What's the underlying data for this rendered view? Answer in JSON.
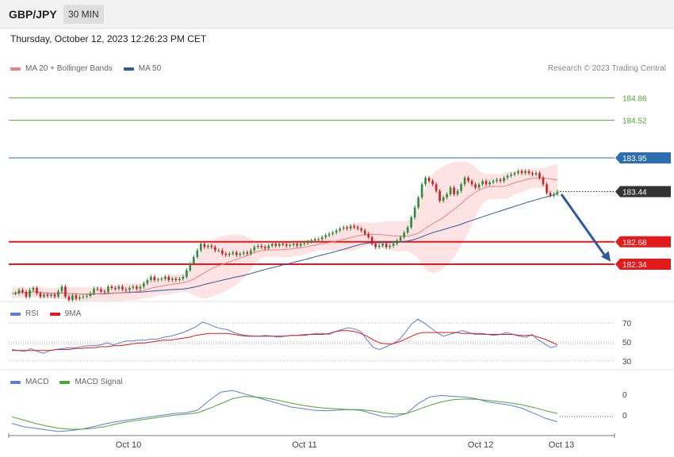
{
  "header": {
    "symbol": "GBP/JPY",
    "interval": "30 MIN",
    "datetime": "Thursday, October 12, 2023 12:26:23 PM CET",
    "copyright": "Research © 2023 Trading Central"
  },
  "legends": {
    "price": [
      {
        "label": "MA 20 + Bollinger Bands",
        "color": "#f08080"
      },
      {
        "label": "MA 50",
        "color": "#2c5a9e"
      }
    ],
    "rsi": [
      {
        "label": "RSI",
        "color": "#5b7fd6"
      },
      {
        "label": "9MA",
        "color": "#e31a1c"
      }
    ],
    "macd": [
      {
        "label": "MACD",
        "color": "#5b7fd6"
      },
      {
        "label": "MACD Signal",
        "color": "#4ea72e"
      }
    ]
  },
  "colors": {
    "up_candle": "#2e8b3e",
    "down_candle": "#cc1f1f",
    "band_fill": "#fde3e3",
    "resistance": "#4ea72e",
    "pivot": "#2c6fb0",
    "support": "#e31a1c",
    "arrow": "#2c5a9e"
  },
  "chart_data": [
    {
      "type": "candlestick",
      "title": "GBP/JPY 30 MIN",
      "x_ticks": [
        "Oct 10",
        "Oct 11",
        "Oct 12",
        "Oct 13"
      ],
      "ylim": [
        181.8,
        185.2
      ],
      "levels": [
        {
          "value": 184.86,
          "label": "184.86",
          "kind": "resistance"
        },
        {
          "value": 184.52,
          "label": "184.52",
          "kind": "resistance"
        },
        {
          "value": 183.95,
          "label": "183.95",
          "kind": "pivot"
        },
        {
          "value": 183.44,
          "label": "183.44",
          "kind": "last"
        },
        {
          "value": 182.68,
          "label": "182.68",
          "kind": "support"
        },
        {
          "value": 182.34,
          "label": "182.34",
          "kind": "support"
        }
      ],
      "close": [
        181.9,
        181.9,
        181.95,
        181.92,
        181.85,
        181.95,
        181.98,
        181.9,
        181.85,
        181.88,
        181.86,
        181.88,
        181.85,
        181.93,
        182.0,
        181.85,
        181.8,
        181.87,
        181.82,
        181.84,
        181.85,
        181.86,
        181.9,
        181.97,
        181.96,
        181.93,
        181.92,
        182.0,
        181.98,
        181.97,
        182.0,
        181.96,
        181.95,
        181.98,
        182.0,
        181.97,
        182.0,
        182.05,
        182.1,
        182.15,
        182.1,
        182.11,
        182.12,
        182.15,
        182.1,
        182.12,
        182.1,
        182.12,
        182.15,
        182.25,
        182.35,
        182.45,
        182.55,
        182.65,
        182.6,
        182.62,
        182.6,
        182.55,
        182.55,
        182.5,
        182.48,
        182.5,
        182.52,
        182.48,
        182.5,
        182.52,
        182.5,
        182.55,
        182.6,
        182.62,
        182.6,
        182.58,
        182.62,
        182.65,
        182.62,
        182.65,
        182.64,
        182.62,
        182.63,
        182.65,
        182.62,
        182.65,
        182.66,
        182.68,
        182.7,
        182.72,
        182.72,
        182.75,
        182.78,
        182.8,
        182.82,
        182.85,
        182.88,
        182.9,
        182.88,
        182.92,
        182.9,
        182.88,
        182.85,
        182.8,
        182.75,
        182.65,
        182.6,
        182.62,
        182.65,
        182.6,
        182.62,
        182.65,
        182.7,
        182.75,
        182.82,
        182.9,
        183.05,
        183.2,
        183.35,
        183.55,
        183.65,
        183.6,
        183.55,
        183.45,
        183.3,
        183.35,
        183.4,
        183.5,
        183.4,
        183.45,
        183.55,
        183.65,
        183.6,
        183.55,
        183.5,
        183.55,
        183.6,
        183.55,
        183.58,
        183.6,
        183.62,
        183.6,
        183.65,
        183.68,
        183.7,
        183.72,
        183.75,
        183.72,
        183.75,
        183.72,
        183.7,
        183.72,
        183.65,
        183.55,
        183.42,
        183.38,
        183.4,
        183.44
      ]
    },
    {
      "type": "line",
      "title": "RSI",
      "ylim": [
        24,
        76
      ],
      "y_ticks": [
        70,
        50,
        30
      ],
      "series": [
        {
          "name": "RSI",
          "values": [
            42,
            41,
            40,
            43,
            40,
            38,
            41,
            42,
            43,
            44,
            44,
            45,
            46,
            46,
            47,
            49,
            47,
            49,
            51,
            51,
            52,
            52,
            53,
            53,
            55,
            56,
            58,
            60,
            63,
            66,
            71,
            69,
            66,
            64,
            63,
            60,
            58,
            57,
            56,
            56,
            57,
            56,
            55,
            56,
            57,
            57,
            58,
            58,
            59,
            59,
            58,
            61,
            63,
            65,
            64,
            61,
            52,
            44,
            42,
            45,
            48,
            52,
            60,
            69,
            74,
            70,
            65,
            60,
            56,
            58,
            60,
            62,
            60,
            58,
            58,
            58,
            57,
            58,
            60,
            58,
            56,
            55,
            58,
            52,
            48,
            44,
            46
          ]
        },
        {
          "name": "9MA",
          "values": [
            41,
            41,
            41,
            41,
            41,
            41,
            41,
            42,
            42,
            42,
            43,
            43,
            44,
            44,
            45,
            45,
            46,
            46,
            47,
            48,
            49,
            49,
            50,
            51,
            52,
            52,
            53,
            54,
            55,
            57,
            58,
            59,
            59,
            59,
            59,
            58,
            57,
            56,
            56,
            56,
            56,
            56,
            56,
            56,
            57,
            57,
            57,
            58,
            58,
            58,
            59,
            61,
            62,
            62,
            61,
            59,
            56,
            52,
            49,
            48,
            48,
            50,
            53,
            56,
            59,
            60,
            60,
            60,
            60,
            60,
            60,
            59,
            59,
            59,
            59,
            58,
            58,
            58,
            58,
            58,
            57,
            57,
            57,
            55,
            53,
            50,
            47
          ]
        }
      ]
    },
    {
      "type": "line",
      "title": "MACD",
      "ylim": [
        -0.3,
        1.1
      ],
      "y_ticks": [
        0,
        0
      ],
      "series": [
        {
          "name": "MACD",
          "values": [
            0.0,
            -0.1,
            -0.15,
            -0.2,
            -0.25,
            -0.22,
            -0.18,
            -0.1,
            -0.02,
            0.05,
            0.1,
            0.15,
            0.2,
            0.25,
            0.3,
            0.32,
            0.4,
            0.7,
            0.95,
            1.0,
            0.9,
            0.8,
            0.7,
            0.6,
            0.5,
            0.45,
            0.4,
            0.38,
            0.4,
            0.42,
            0.4,
            0.3,
            0.2,
            0.2,
            0.3,
            0.6,
            0.8,
            0.85,
            0.82,
            0.8,
            0.75,
            0.65,
            0.6,
            0.55,
            0.45,
            0.3,
            0.15,
            0.05
          ]
        },
        {
          "name": "MACD Signal",
          "values": [
            0.2,
            0.1,
            0.0,
            -0.08,
            -0.15,
            -0.18,
            -0.18,
            -0.15,
            -0.1,
            -0.02,
            0.05,
            0.1,
            0.15,
            0.2,
            0.25,
            0.28,
            0.32,
            0.45,
            0.6,
            0.75,
            0.82,
            0.8,
            0.76,
            0.7,
            0.62,
            0.55,
            0.5,
            0.46,
            0.44,
            0.42,
            0.42,
            0.38,
            0.32,
            0.28,
            0.3,
            0.42,
            0.55,
            0.65,
            0.72,
            0.74,
            0.73,
            0.7,
            0.66,
            0.62,
            0.56,
            0.48,
            0.38,
            0.3
          ]
        }
      ]
    }
  ]
}
